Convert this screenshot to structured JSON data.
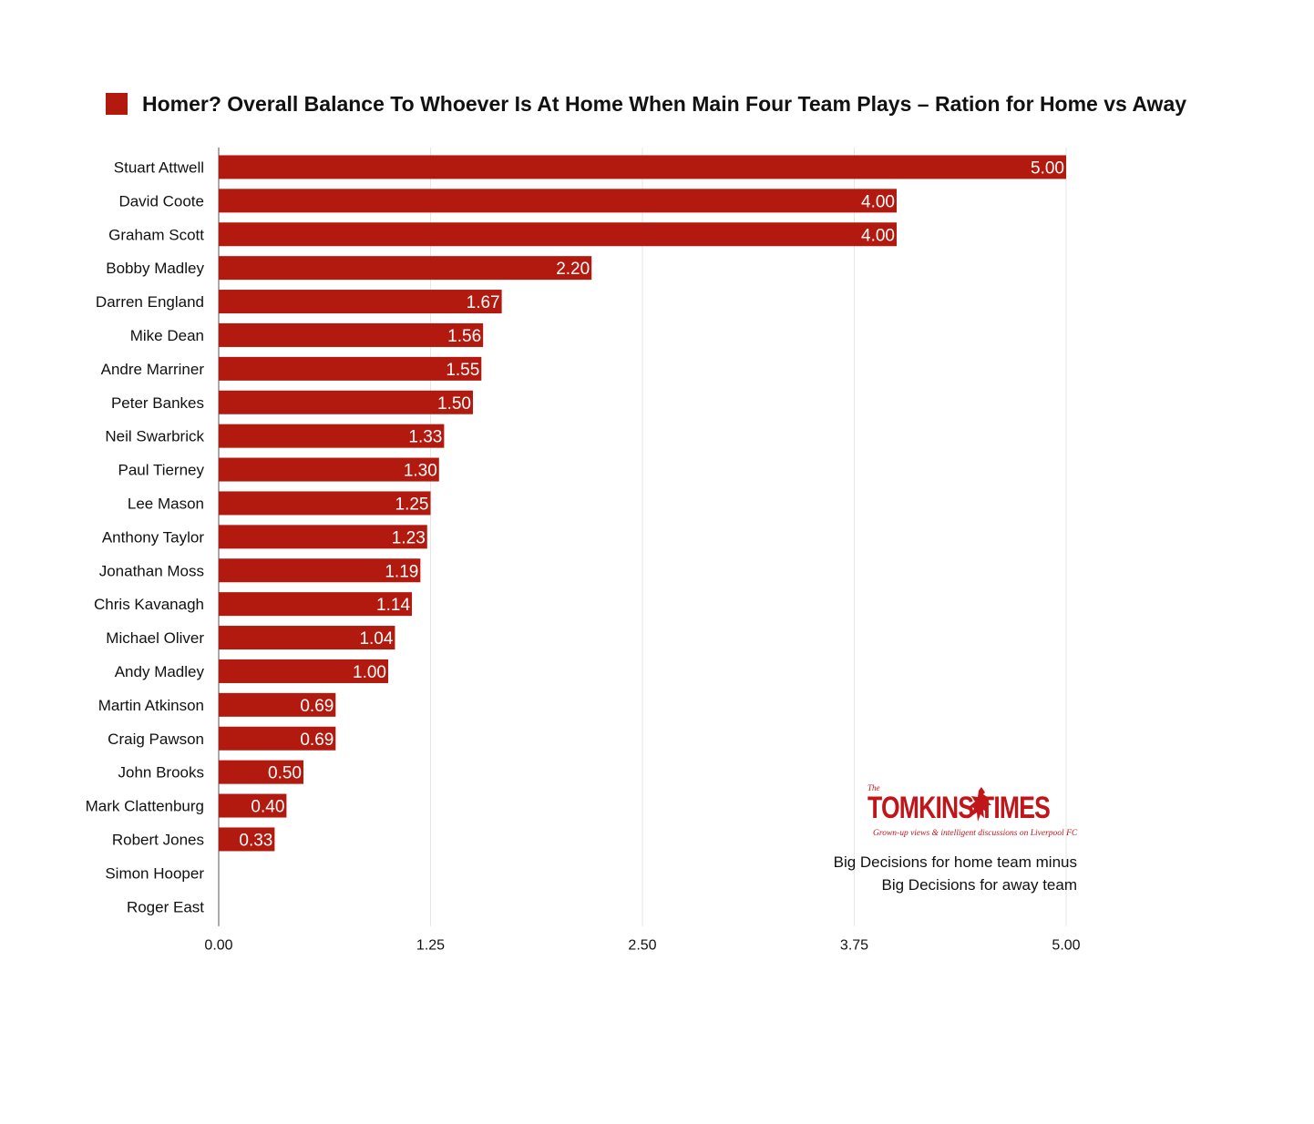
{
  "chart_data": {
    "type": "bar",
    "orientation": "horizontal",
    "title": "Homer? Overall Balance To Whoever Is At Home When Main Four Team Plays – Ration for Home vs Away",
    "legend_position": "top-left",
    "grid": true,
    "categories": [
      "Stuart Attwell",
      "David Coote",
      "Graham Scott",
      "Bobby Madley",
      "Darren England",
      "Mike Dean",
      "Andre Marriner",
      "Peter Bankes",
      "Neil Swarbrick",
      "Paul Tierney",
      "Lee Mason",
      "Anthony Taylor",
      "Jonathan Moss",
      "Chris Kavanagh",
      "Michael Oliver",
      "Andy Madley",
      "Martin Atkinson",
      "Craig Pawson",
      "John Brooks",
      "Mark Clattenburg",
      "Robert Jones",
      "Simon Hooper",
      "Roger East"
    ],
    "values": [
      5.0,
      4.0,
      4.0,
      2.2,
      1.67,
      1.56,
      1.55,
      1.5,
      1.33,
      1.3,
      1.25,
      1.23,
      1.19,
      1.14,
      1.04,
      1.0,
      0.69,
      0.69,
      0.5,
      0.4,
      0.33,
      0.0,
      0.0
    ],
    "value_labels": [
      "5.00",
      "4.00",
      "4.00",
      "2.20",
      "1.67",
      "1.56",
      "1.55",
      "1.50",
      "1.33",
      "1.30",
      "1.25",
      "1.23",
      "1.19",
      "1.14",
      "1.04",
      "1.00",
      "0.69",
      "0.69",
      "0.50",
      "0.40",
      "0.33",
      "",
      ""
    ],
    "xticks": [
      "0.00",
      "1.25",
      "2.50",
      "3.75",
      "5.00"
    ],
    "xlim": [
      0,
      5
    ],
    "xlabel": "",
    "ylabel": "",
    "bar_color": "#b31a0f"
  },
  "logo": {
    "small": "The",
    "main": "TOMKINS TIMES",
    "tagline": "Grown-up views & intelligent discussions on Liverpool FC",
    "color": "#c0161a"
  },
  "note": {
    "line1": "Big Decisions for home team minus",
    "line2": "Big Decisions for away team"
  }
}
